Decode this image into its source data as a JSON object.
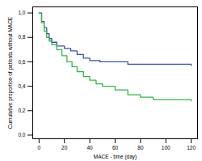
{
  "chart_data": {
    "type": "line",
    "x_label": "MACE - time (day)",
    "y_label": "Cumulative proportion of patients without MACE",
    "series": [
      {
        "color": "#3b52a3",
        "x": [
          0,
          2,
          4,
          6,
          8,
          10,
          14,
          20,
          25,
          30,
          35,
          40,
          48,
          70,
          120
        ],
        "values": [
          1.0,
          0.93,
          0.88,
          0.83,
          0.79,
          0.76,
          0.73,
          0.71,
          0.69,
          0.66,
          0.63,
          0.61,
          0.6,
          0.58,
          0.57
        ]
      },
      {
        "color": "#35b44a",
        "x": [
          0,
          2,
          4,
          6,
          8,
          10,
          14,
          18,
          22,
          26,
          30,
          35,
          40,
          45,
          50,
          60,
          70,
          80,
          90,
          120
        ],
        "values": [
          1.0,
          0.92,
          0.85,
          0.8,
          0.77,
          0.74,
          0.7,
          0.65,
          0.6,
          0.56,
          0.52,
          0.48,
          0.45,
          0.42,
          0.4,
          0.37,
          0.33,
          0.31,
          0.29,
          0.28
        ]
      }
    ],
    "xlim": [
      -5,
      125
    ],
    "xticks": [
      0,
      20,
      40,
      60,
      80,
      100,
      120
    ],
    "ylim": [
      -0.03,
      1.05
    ],
    "yticks": [
      {
        "value": 0,
        "label": "0,0"
      },
      {
        "value": 0.2,
        "label": "0,2"
      },
      {
        "value": 0.4,
        "label": "0,4"
      },
      {
        "value": 0.6,
        "label": "0,6"
      },
      {
        "value": 0.8,
        "label": "0,8"
      },
      {
        "value": 1.0,
        "label": "1,0"
      }
    ],
    "grid": false,
    "line_style": "step"
  }
}
